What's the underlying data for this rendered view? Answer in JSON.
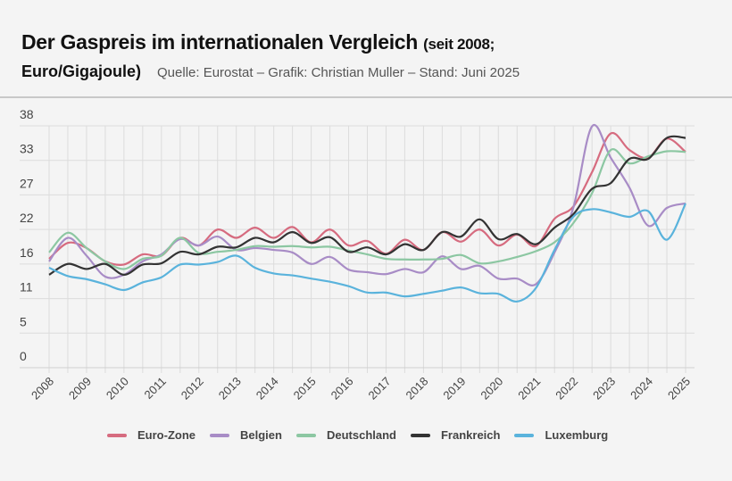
{
  "header": {
    "title": "Der Gaspreis im internationalen Vergleich",
    "title_suffix": "(seit 2008;",
    "title_line2": "Euro/Gigajoule)",
    "source": "Quelle: Eurostat – Grafik: Christian Muller – Stand: Juni 2025"
  },
  "chart_data": {
    "type": "line",
    "title": "Der Gaspreis im internationalen Vergleich (seit 2008; Euro/Gigajoule)",
    "xlabel": "",
    "ylabel": "",
    "ylim": [
      0,
      38
    ],
    "y_tick_labels": [
      "0",
      "5",
      "11",
      "16",
      "22",
      "27",
      "33",
      "38"
    ],
    "x_tick_labels": [
      "2008",
      "2009",
      "2010",
      "2011",
      "2012",
      "2013",
      "2014",
      "2015",
      "2016",
      "2017",
      "2018",
      "2019",
      "2020",
      "2021",
      "2022",
      "2023",
      "2024",
      "2025"
    ],
    "x": [
      2008,
      2008.5,
      2009,
      2009.5,
      2010,
      2010.5,
      2011,
      2011.5,
      2012,
      2012.5,
      2013,
      2013.5,
      2014,
      2014.5,
      2015,
      2015.5,
      2016,
      2016.5,
      2017,
      2017.5,
      2018,
      2018.5,
      2019,
      2019.5,
      2020,
      2020.5,
      2021,
      2021.5,
      2022,
      2022.5,
      2023,
      2023.5,
      2024,
      2024.5,
      2025
    ],
    "grid": true,
    "legend": "bottom",
    "series": [
      {
        "name": "Euro-Zone",
        "color": "#d66b7f",
        "values": [
          17.1,
          19.6,
          18.8,
          16.7,
          16.2,
          17.8,
          17.6,
          20.4,
          19.2,
          21.7,
          20.4,
          22.0,
          20.4,
          22.1,
          19.7,
          21.7,
          19.2,
          19.9,
          17.9,
          20.1,
          18.5,
          21.3,
          19.8,
          21.7,
          19.2,
          20.9,
          19.1,
          23.4,
          25.3,
          30.7,
          36.8,
          34.2,
          33.0,
          36.0,
          33.9
        ]
      },
      {
        "name": "Belgien",
        "color": "#a88cc6",
        "values": [
          16.7,
          20.4,
          17.6,
          14.3,
          14.6,
          16.7,
          17.8,
          20.2,
          19.2,
          20.6,
          18.5,
          18.8,
          18.5,
          18.1,
          16.3,
          17.4,
          15.4,
          15.0,
          14.7,
          15.5,
          15.0,
          17.5,
          15.5,
          16.0,
          14.0,
          14.0,
          13.1,
          18.1,
          25.1,
          37.9,
          33.0,
          28.3,
          22.3,
          25.1,
          25.8
        ]
      },
      {
        "name": "Deutschland",
        "color": "#8cc7a2",
        "values": [
          18.1,
          21.2,
          18.8,
          16.7,
          15.5,
          17.1,
          17.6,
          20.4,
          18.0,
          18.2,
          18.5,
          19.1,
          19.0,
          19.1,
          18.9,
          19.0,
          18.4,
          17.8,
          17.1,
          17.0,
          17.0,
          17.1,
          17.7,
          16.4,
          16.7,
          17.4,
          18.3,
          19.7,
          22.7,
          27.4,
          34.2,
          32.1,
          33.2,
          34.0,
          33.9
        ]
      },
      {
        "name": "Frankreich",
        "color": "#333333",
        "values": [
          14.6,
          16.3,
          15.5,
          16.3,
          14.6,
          16.2,
          16.4,
          18.2,
          17.8,
          19.0,
          18.9,
          20.4,
          19.7,
          21.3,
          19.6,
          20.5,
          18.2,
          18.9,
          17.8,
          19.4,
          18.5,
          21.3,
          20.6,
          23.3,
          20.2,
          21.0,
          19.4,
          22.0,
          24.1,
          28.1,
          29.0,
          32.8,
          32.8,
          36.1,
          36.1
        ]
      },
      {
        "name": "Luxemburg",
        "color": "#5ab3dc",
        "values": [
          15.7,
          14.4,
          13.9,
          13.1,
          12.2,
          13.4,
          14.2,
          16.2,
          16.2,
          16.6,
          17.6,
          15.7,
          14.8,
          14.5,
          14.0,
          13.5,
          12.8,
          11.8,
          11.8,
          11.2,
          11.6,
          12.1,
          12.6,
          11.7,
          11.6,
          10.4,
          12.5,
          18.5,
          23.7,
          24.9,
          24.4,
          23.7,
          24.6,
          20.1,
          25.8
        ]
      }
    ]
  }
}
